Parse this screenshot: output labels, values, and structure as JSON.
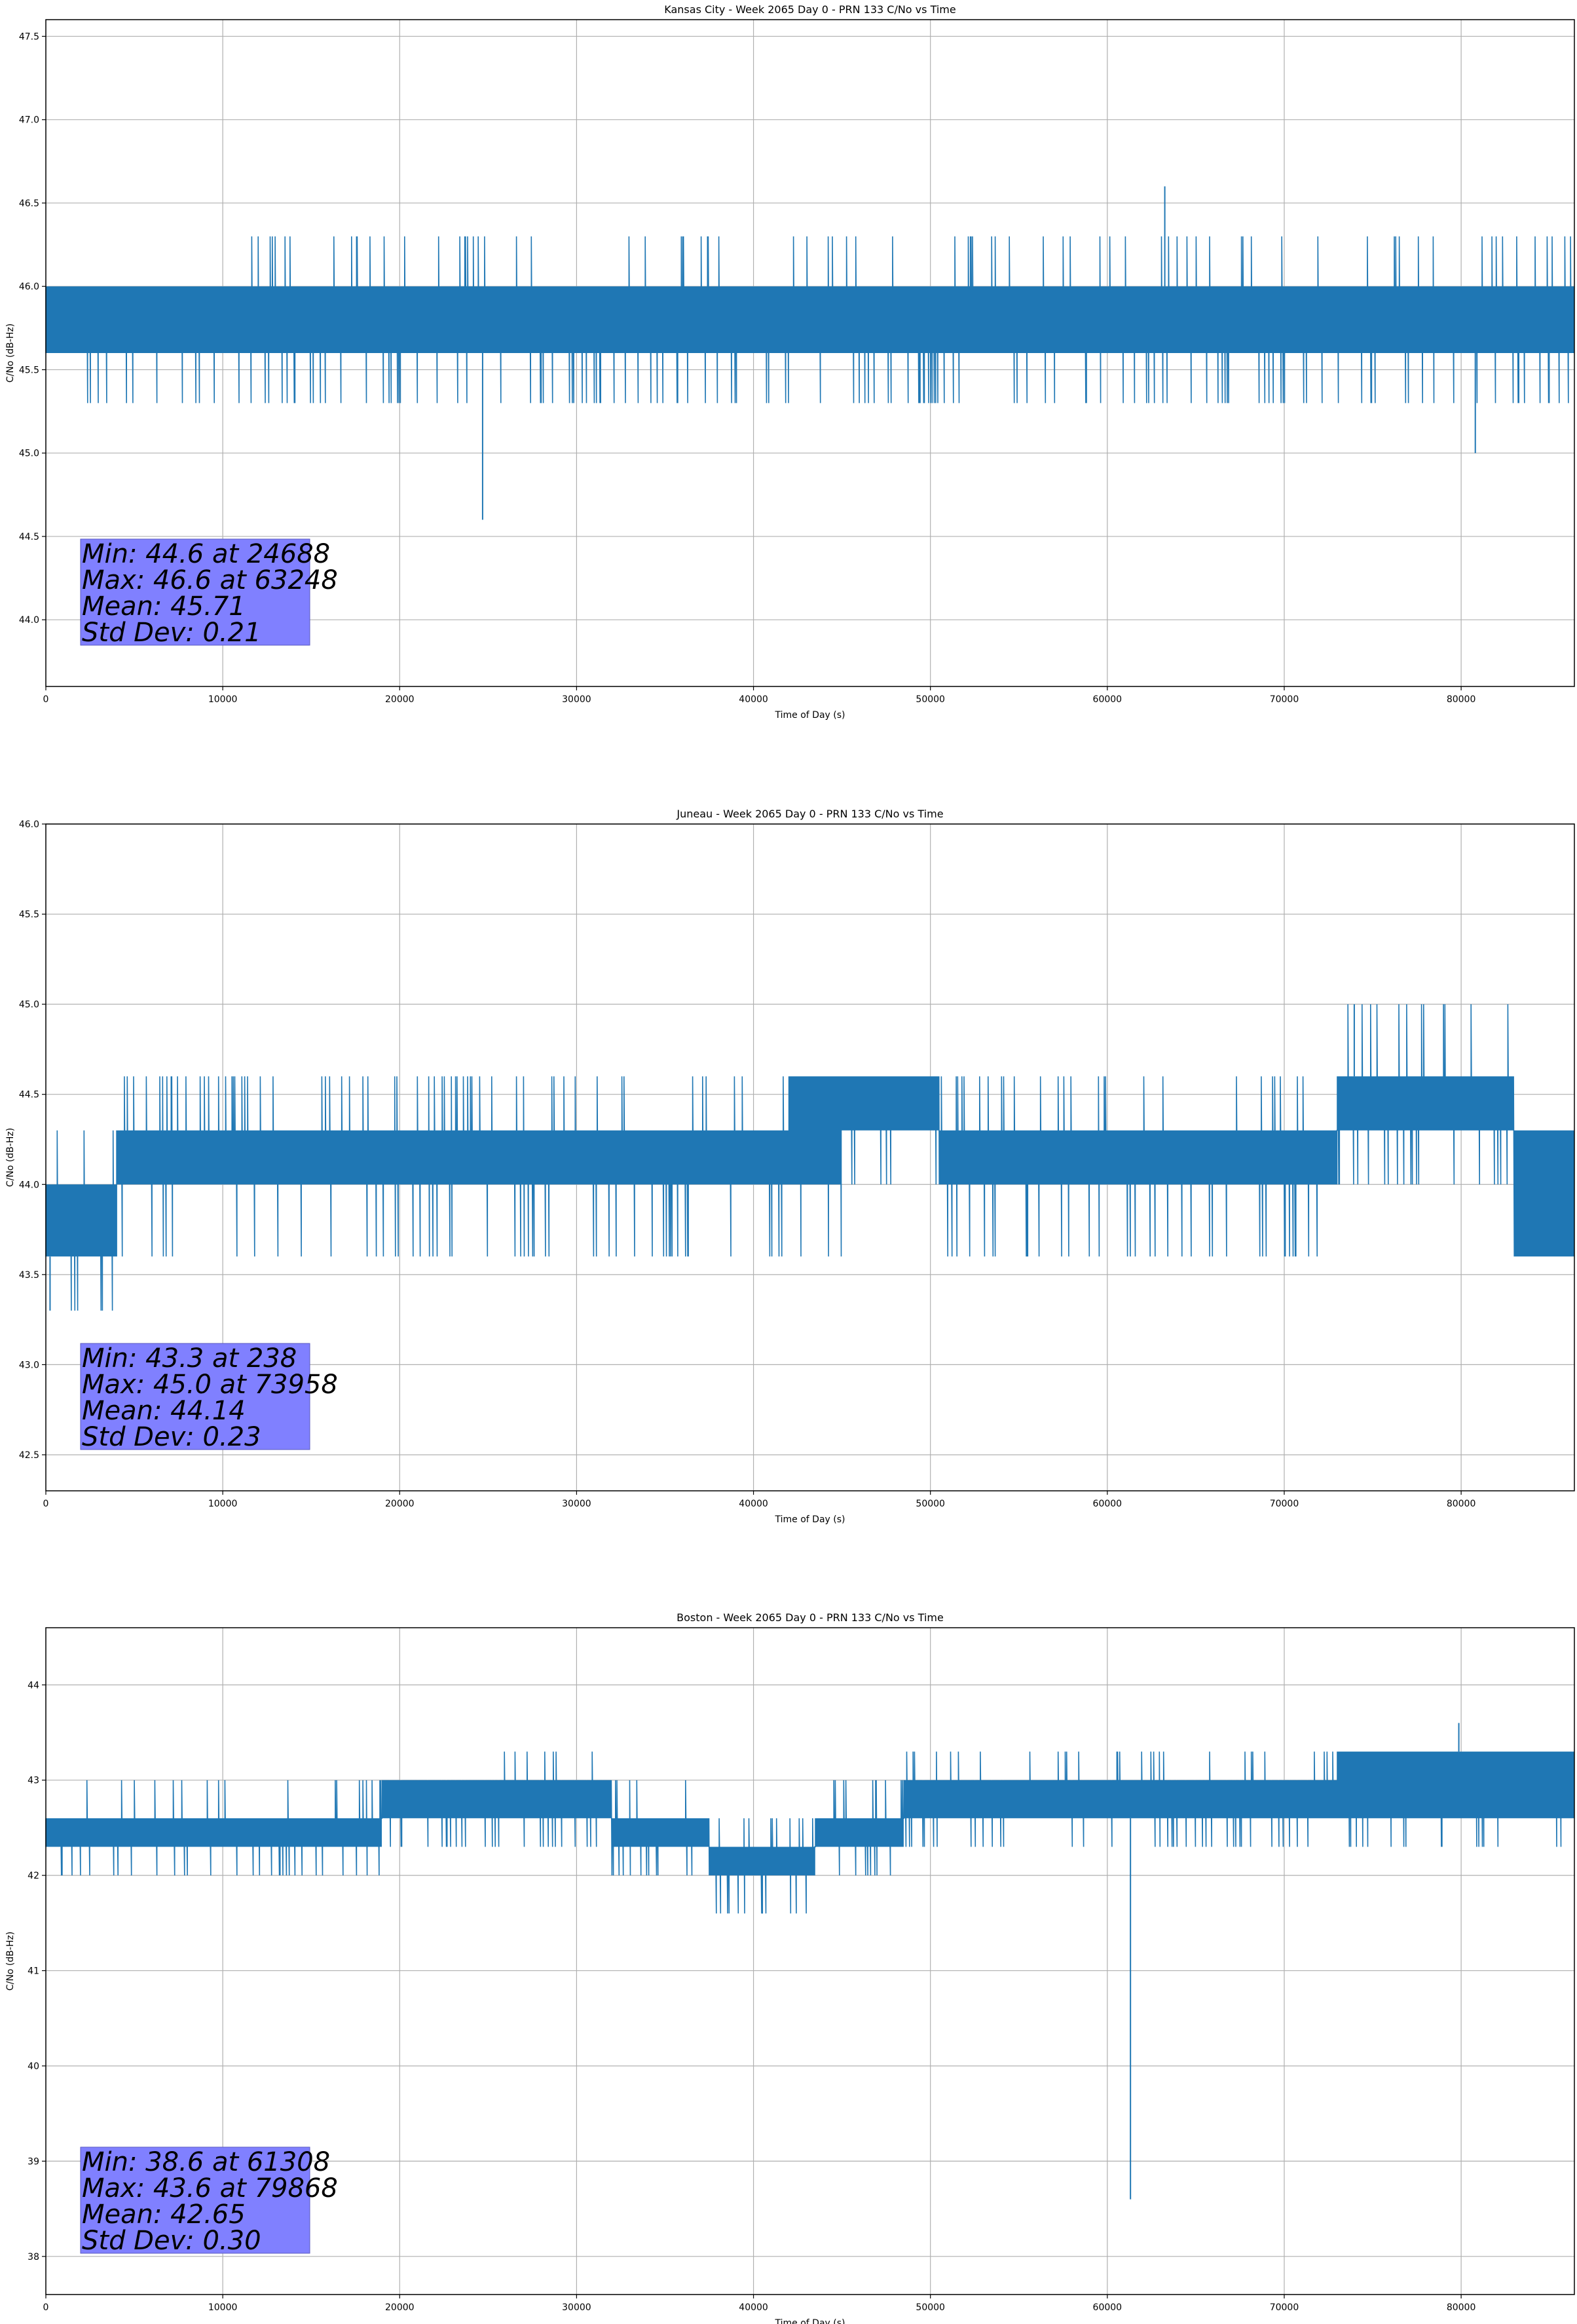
{
  "chart_data": [
    {
      "type": "line",
      "title": "Kansas City - Week 2065 Day 0 - PRN 133 C/No vs Time",
      "xlabel": "Time of Day (s)",
      "ylabel": "C/No (dB-Hz)",
      "xlim": [
        0,
        86400
      ],
      "ylim": [
        43.6,
        47.6
      ],
      "xticks": [
        0,
        10000,
        20000,
        30000,
        40000,
        50000,
        60000,
        70000,
        80000
      ],
      "xtick_labels": [
        "0",
        "10000",
        "20000",
        "30000",
        "40000",
        "50000",
        "60000",
        "70000",
        "80000"
      ],
      "yticks": [
        44.0,
        44.5,
        45.0,
        45.5,
        46.0,
        46.5,
        47.0,
        47.5
      ],
      "ytick_labels": [
        "44.0",
        "44.5",
        "45.0",
        "45.5",
        "46.0",
        "46.5",
        "47.0",
        "47.5"
      ],
      "grid": true,
      "line_color": "#1f77b4",
      "stats_box_color": "#8080ff",
      "series": [
        {
          "segments": [
            {
              "x": [
                0,
                10200
              ],
              "low": 45.6,
              "high": 46.0,
              "dips": 45.3,
              "spikes": null
            },
            {
              "x": [
                10200,
                40500
              ],
              "low": 45.6,
              "high": 46.0,
              "dips": 45.3,
              "spikes": 46.3
            },
            {
              "x": [
                40500,
                86400
              ],
              "low": 45.6,
              "high": 46.0,
              "dips": 45.3,
              "spikes": 46.3
            }
          ],
          "min": {
            "x": 24688,
            "y": 44.6
          },
          "max": {
            "x": 63248,
            "y": 46.6
          },
          "extra_dips": [
            {
              "x": 80800,
              "y": 45.0
            }
          ]
        }
      ],
      "stats": [
        "Min: 44.6 at 24688",
        "Max: 46.6 at 63248",
        "Mean: 45.71",
        "Std Dev: 0.21"
      ]
    },
    {
      "type": "line",
      "title": "Juneau - Week 2065 Day 0 - PRN 133 C/No vs Time",
      "xlabel": "Time of Day (s)",
      "ylabel": "C/No (dB-Hz)",
      "xlim": [
        0,
        86400
      ],
      "ylim": [
        42.3,
        46.0
      ],
      "xticks": [
        0,
        10000,
        20000,
        30000,
        40000,
        50000,
        60000,
        70000,
        80000
      ],
      "xtick_labels": [
        "0",
        "10000",
        "20000",
        "30000",
        "40000",
        "50000",
        "60000",
        "70000",
        "80000"
      ],
      "yticks": [
        42.5,
        43.0,
        43.5,
        44.0,
        44.5,
        45.0,
        45.5,
        46.0
      ],
      "ytick_labels": [
        "42.5",
        "43.0",
        "43.5",
        "44.0",
        "44.5",
        "45.0",
        "45.5",
        "46.0"
      ],
      "grid": true,
      "line_color": "#1f77b4",
      "stats_box_color": "#8080ff",
      "series": [
        {
          "segments": [
            {
              "x": [
                0,
                4000
              ],
              "low": 43.6,
              "high": 44.0,
              "dips": 43.3,
              "spikes": 44.3
            },
            {
              "x": [
                4000,
                42000
              ],
              "low": 44.0,
              "high": 44.3,
              "dips": 43.6,
              "spikes": 44.6
            },
            {
              "x": [
                42000,
                45000
              ],
              "low": 44.0,
              "high": 44.6,
              "dips": 43.6,
              "spikes": 44.6
            },
            {
              "x": [
                45000,
                50500
              ],
              "low": 44.3,
              "high": 44.6,
              "dips": 44.0,
              "spikes": null
            },
            {
              "x": [
                50500,
                73000
              ],
              "low": 44.0,
              "high": 44.3,
              "dips": 43.6,
              "spikes": 44.6
            },
            {
              "x": [
                73000,
                83000
              ],
              "low": 44.3,
              "high": 44.6,
              "dips": 44.0,
              "spikes": 45.0
            },
            {
              "x": [
                83000,
                86400
              ],
              "low": 43.6,
              "high": 44.3,
              "dips": 43.6,
              "spikes": null
            }
          ],
          "min": {
            "x": 238,
            "y": 43.3
          },
          "max": {
            "x": 73958,
            "y": 45.0
          },
          "extra_dips": []
        }
      ],
      "stats": [
        "Min: 43.3 at 238",
        "Max: 45.0 at 73958",
        "Mean: 44.14",
        "Std Dev: 0.23"
      ]
    },
    {
      "type": "line",
      "title": "Boston - Week 2065 Day 0 - PRN 133 C/No vs Time",
      "xlabel": "Time of Day (s)",
      "ylabel": "C/No (dB-Hz)",
      "xlim": [
        0,
        86400
      ],
      "ylim": [
        37.6,
        44.6
      ],
      "xticks": [
        0,
        10000,
        20000,
        30000,
        40000,
        50000,
        60000,
        70000,
        80000
      ],
      "xtick_labels": [
        "0",
        "10000",
        "20000",
        "30000",
        "40000",
        "50000",
        "60000",
        "70000",
        "80000"
      ],
      "yticks": [
        38,
        39,
        40,
        41,
        42,
        43,
        44
      ],
      "ytick_labels": [
        "38",
        "39",
        "40",
        "41",
        "42",
        "43",
        "44"
      ],
      "grid": true,
      "line_color": "#1f77b4",
      "stats_box_color": "#8080ff",
      "series": [
        {
          "segments": [
            {
              "x": [
                0,
                19000
              ],
              "low": 42.3,
              "high": 42.6,
              "dips": 42.0,
              "spikes": 43.0
            },
            {
              "x": [
                19000,
                25000
              ],
              "low": 42.6,
              "high": 43.0,
              "dips": 42.3,
              "spikes": null
            },
            {
              "x": [
                25000,
                32000
              ],
              "low": 42.6,
              "high": 43.0,
              "dips": 42.3,
              "spikes": 43.3
            },
            {
              "x": [
                32000,
                37500
              ],
              "low": 42.3,
              "high": 42.6,
              "dips": 42.0,
              "spikes": 43.0
            },
            {
              "x": [
                37500,
                43500
              ],
              "low": 42.0,
              "high": 42.3,
              "dips": 41.6,
              "spikes": 42.6
            },
            {
              "x": [
                43500,
                48500
              ],
              "low": 42.3,
              "high": 42.6,
              "dips": 42.0,
              "spikes": 43.0
            },
            {
              "x": [
                48500,
                73000
              ],
              "low": 42.6,
              "high": 43.0,
              "dips": 42.3,
              "spikes": 43.3
            },
            {
              "x": [
                73000,
                86400
              ],
              "low": 42.6,
              "high": 43.3,
              "dips": 42.3,
              "spikes": 43.3
            }
          ],
          "min": {
            "x": 61308,
            "y": 38.6
          },
          "max": {
            "x": 79868,
            "y": 43.6
          },
          "extra_dips": [
            {
              "x": 40500,
              "y": 41.6
            }
          ]
        }
      ],
      "stats": [
        "Min: 38.6 at 61308",
        "Max: 43.6 at 79868",
        "Mean: 42.65",
        "Std Dev: 0.30"
      ]
    }
  ]
}
